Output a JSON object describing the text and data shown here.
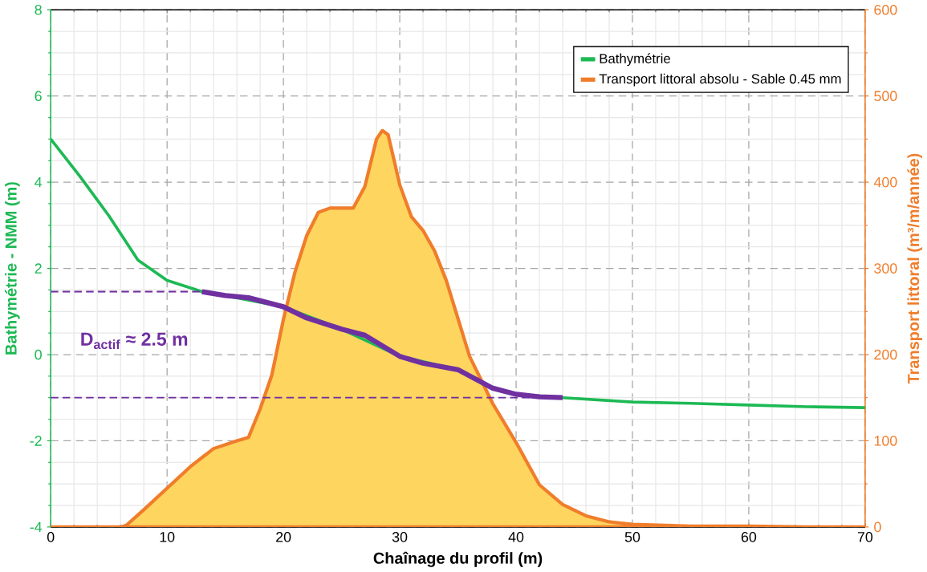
{
  "chart_data": {
    "type": "line",
    "xlabel": "Chaînage du profil (m)",
    "ylabel": "Bathymétrie - NMM (m)",
    "y2label": "Transport littoral (m³/m/année)",
    "xlim": [
      0,
      70
    ],
    "xticks": [
      0,
      10,
      20,
      30,
      40,
      50,
      60,
      70
    ],
    "ylim": [
      -4,
      8
    ],
    "yticks": [
      -4,
      -2,
      0,
      2,
      4,
      6,
      8
    ],
    "y2lim": [
      0,
      600
    ],
    "y2ticks": [
      0,
      100,
      200,
      300,
      400,
      500,
      600
    ],
    "grid": true,
    "legend": "top right",
    "annotations": [
      "D$_{actif}$ ≈ 2.5 m"
    ],
    "series": [
      {
        "name": "Transport littoral absolu - Sable 0.45 mm",
        "type": "area",
        "axis": "y2",
        "color": "#f07d2b",
        "x": [
          0,
          2,
          4,
          6,
          6.5,
          8,
          10,
          12,
          14,
          16,
          17,
          18,
          19,
          20,
          21,
          22,
          23,
          24,
          26,
          27,
          28,
          28.5,
          29,
          30,
          31,
          32,
          33,
          34,
          36,
          38,
          40,
          42,
          44,
          46,
          48,
          50,
          55,
          60,
          65,
          70
        ],
        "values": [
          0,
          0,
          0,
          0,
          2,
          20,
          45,
          70,
          91,
          100,
          104,
          137,
          176,
          241,
          296,
          338,
          365,
          370,
          370,
          395,
          450,
          460,
          455,
          397,
          360,
          344,
          320,
          286,
          198,
          143,
          98,
          49,
          26,
          13,
          6,
          3,
          1,
          1,
          0,
          0
        ]
      },
      {
        "name": "Bathymétrie",
        "color": "#1db954",
        "x": [
          0,
          2.5,
          5,
          7.5,
          10,
          13,
          15,
          20,
          25,
          30,
          35,
          38,
          40,
          44,
          50,
          55,
          60,
          65,
          70
        ],
        "values": [
          5,
          4.14,
          3.22,
          2.19,
          1.72,
          1.46,
          1.37,
          1.11,
          0.59,
          -0.04,
          -0.35,
          -0.78,
          -0.92,
          -1.0,
          -1.1,
          -1.13,
          -1.17,
          -1.21,
          -1.23
        ]
      },
      {
        "color": "#7030a0",
        "x": [
          13,
          15,
          17,
          20,
          22,
          25,
          27,
          30,
          32,
          35,
          38,
          40,
          42,
          44
        ],
        "values": [
          1.46,
          1.37,
          1.32,
          1.11,
          0.85,
          0.59,
          0.45,
          -0.04,
          -0.2,
          -0.35,
          -0.78,
          -0.92,
          -0.98,
          -1.0
        ]
      },
      {
        "color": "#7030a0",
        "line_style": "dashed",
        "x": [
          0,
          13
        ],
        "values": [
          1.46,
          1.46
        ]
      },
      {
        "color": "#7030a0",
        "line_style": "dashed",
        "x": [
          0,
          44
        ],
        "values": [
          -1.0,
          -1.0
        ]
      }
    ]
  }
}
